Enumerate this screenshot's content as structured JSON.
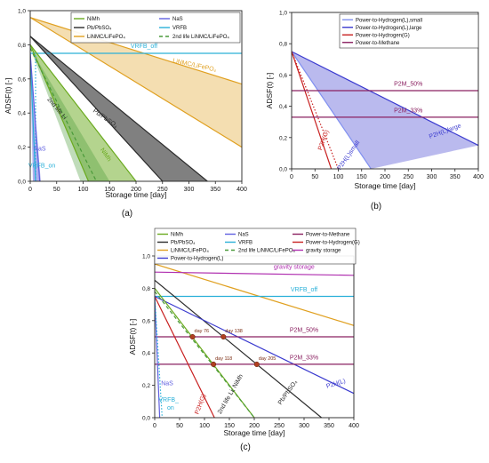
{
  "colors": {
    "nimh": "#6aaa1e",
    "pb": "#2b2b2b",
    "limn": "#e0a020",
    "nas": "#6060e0",
    "vrfb": "#2ab0d8",
    "second": "#4a9a3a",
    "p2h_small": "#8090f0",
    "p2h_large": "#3a3acf",
    "p2h_g": "#c82020",
    "p2m": "#8a2060",
    "gravity": "#b030b0",
    "events": "#b04020"
  },
  "chart_data": [
    {
      "id": "a",
      "type": "area",
      "panel_label": "(a)",
      "xlabel": "Storage time [day]",
      "ylabel": "ADSF(t) [-]",
      "xlim": [
        0,
        400
      ],
      "ylim": [
        0,
        1.0
      ],
      "xticks": [
        "0",
        "50",
        "100",
        "150",
        "200",
        "250",
        "300",
        "350",
        "400"
      ],
      "yticks": [
        "0,0",
        "0,2",
        "0,4",
        "0,6",
        "0,8",
        "1,0"
      ],
      "legend_position": "top",
      "legend": [
        {
          "key": "nimh",
          "label": "NiMh",
          "style": "solid"
        },
        {
          "key": "nas",
          "label": "NaS",
          "style": "solid"
        },
        {
          "key": "pb",
          "label": "Pb/PbSO₄",
          "style": "solid"
        },
        {
          "key": "vrfb",
          "label": "VRFB",
          "style": "solid"
        },
        {
          "key": "limn",
          "label": "LiNMC/LiFePO₄",
          "style": "solid"
        },
        {
          "key": "second",
          "label": "2nd life LiNMC/LiFePO₄",
          "style": "dashed"
        }
      ],
      "bands": [
        {
          "key": "limn",
          "upper": [
            [
              0,
              0.96
            ],
            [
              400,
              0.57
            ]
          ],
          "lower": [
            [
              0,
              0.96
            ],
            [
              400,
              0.2
            ]
          ],
          "opacity": 0.35
        },
        {
          "key": "pb",
          "upper": [
            [
              0,
              0.85
            ],
            [
              335,
              0
            ]
          ],
          "lower": [
            [
              0,
              0.85
            ],
            [
              250,
              0
            ]
          ],
          "opacity": 0.6
        },
        {
          "key": "nimh",
          "upper": [
            [
              0,
              0.8
            ],
            [
              200,
              0
            ]
          ],
          "lower": [
            [
              0,
              0.8
            ],
            [
              110,
              0
            ]
          ],
          "opacity": 0.5
        },
        {
          "key": "second",
          "upper": [
            [
              0,
              0.78
            ],
            [
              150,
              0
            ]
          ],
          "lower": [
            [
              0,
              0.78
            ],
            [
              95,
              0
            ]
          ],
          "opacity": 0.35
        },
        {
          "key": "nas",
          "upper": [
            [
              0,
              0.75
            ],
            [
              20,
              0
            ]
          ],
          "lower": [
            [
              0,
              0.75
            ],
            [
              5,
              0
            ]
          ],
          "opacity": 0.5
        }
      ],
      "lines": [
        {
          "key": "limn",
          "points": [
            [
              0,
              0.96
            ],
            [
              400,
              0.57
            ]
          ],
          "style": "solid"
        },
        {
          "key": "limn",
          "points": [
            [
              0,
              0.96
            ],
            [
              400,
              0.2
            ]
          ],
          "style": "solid"
        },
        {
          "key": "vrfb",
          "points": [
            [
              0,
              0.75
            ],
            [
              400,
              0.75
            ]
          ],
          "style": "solid"
        },
        {
          "key": "pb",
          "points": [
            [
              0,
              0.85
            ],
            [
              335,
              0
            ]
          ],
          "style": "solid"
        },
        {
          "key": "pb",
          "points": [
            [
              0,
              0.85
            ],
            [
              250,
              0
            ]
          ],
          "style": "solid"
        },
        {
          "key": "nimh",
          "points": [
            [
              0,
              0.8
            ],
            [
              200,
              0
            ]
          ],
          "style": "solid"
        },
        {
          "key": "nimh",
          "points": [
            [
              0,
              0.8
            ],
            [
              110,
              0
            ]
          ],
          "style": "solid"
        },
        {
          "key": "second",
          "points": [
            [
              0,
              0.78
            ],
            [
              125,
              0
            ]
          ],
          "style": "dashed"
        },
        {
          "key": "vrfb",
          "points": [
            [
              0,
              0.75
            ],
            [
              10,
              0
            ]
          ],
          "style": "solid"
        },
        {
          "key": "vrfb",
          "points": [
            [
              10,
              0
            ],
            [
              10,
              0.75
            ]
          ],
          "style": "dotted"
        },
        {
          "key": "nas",
          "points": [
            [
              0,
              0.75
            ],
            [
              18,
              0
            ]
          ],
          "style": "solid"
        }
      ],
      "annotations": [
        {
          "text": "VRFB_off",
          "key": "vrfb",
          "x": 215,
          "y": 0.78,
          "rotate": 0
        },
        {
          "text": "LiNMC/LiFePO₄",
          "key": "limn",
          "x": 310,
          "y": 0.67,
          "rotate": 12
        },
        {
          "text": "Pb/PbSO₄",
          "key": "pb",
          "x": 140,
          "y": 0.36,
          "rotate": 35
        },
        {
          "text": "2nd life Li",
          "key": "pb",
          "x": 48,
          "y": 0.42,
          "rotate": 50
        },
        {
          "text": "NiMh",
          "key": "nimh",
          "x": 140,
          "y": 0.15,
          "rotate": 55
        },
        {
          "text": "NaS",
          "key": "nas",
          "x": 18,
          "y": 0.18,
          "rotate": 0
        },
        {
          "text": "VRFB_on",
          "key": "vrfb",
          "x": 22,
          "y": 0.08,
          "rotate": 0
        }
      ]
    },
    {
      "id": "b",
      "type": "area",
      "panel_label": "(b)",
      "xlabel": "Storage time [day]",
      "ylabel": "ADSF(t) [-]",
      "xlim": [
        0,
        400
      ],
      "ylim": [
        0,
        1.0
      ],
      "xticks": [
        "0",
        "50",
        "100",
        "150",
        "200",
        "250",
        "300",
        "350",
        "400"
      ],
      "yticks": [
        "0,0",
        "0,2",
        "0,4",
        "0,6",
        "0,8",
        "1,0"
      ],
      "legend_position": "top-right",
      "legend": [
        {
          "key": "p2h_small",
          "label": "Power-to-Hydrogen(L),small",
          "style": "solid"
        },
        {
          "key": "p2h_large",
          "label": "Power-to-Hydrogen(L),large",
          "style": "solid"
        },
        {
          "key": "p2h_g",
          "label": "Power-to-Hydrogen(G)",
          "style": "solid"
        },
        {
          "key": "p2m",
          "label": "Power-to-Methane",
          "style": "solid"
        }
      ],
      "bands": [
        {
          "key": "p2h_large",
          "upper": [
            [
              0,
              0.75
            ],
            [
              400,
              0.15
            ]
          ],
          "lower": [
            [
              0,
              0.75
            ],
            [
              170,
              0
            ]
          ],
          "opacity": 0.35
        }
      ],
      "lines": [
        {
          "key": "p2h_large",
          "points": [
            [
              0,
              0.75
            ],
            [
              400,
              0.15
            ]
          ],
          "style": "solid"
        },
        {
          "key": "p2h_small",
          "points": [
            [
              0,
              0.75
            ],
            [
              170,
              0
            ]
          ],
          "style": "solid"
        },
        {
          "key": "p2h_g",
          "points": [
            [
              0,
              0.75
            ],
            [
              100,
              0
            ]
          ],
          "style": "dotted"
        },
        {
          "key": "p2h_g",
          "points": [
            [
              0,
              0.75
            ],
            [
              85,
              0
            ]
          ],
          "style": "solid"
        },
        {
          "key": "p2m",
          "points": [
            [
              0,
              0.5
            ],
            [
              400,
              0.5
            ]
          ],
          "style": "solid"
        },
        {
          "key": "p2m",
          "points": [
            [
              0,
              0.33
            ],
            [
              400,
              0.33
            ]
          ],
          "style": "solid"
        }
      ],
      "annotations": [
        {
          "text": "P2M_50%",
          "key": "p2m",
          "x": 250,
          "y": 0.53,
          "rotate": 0
        },
        {
          "text": "P2M_33%",
          "key": "p2m",
          "x": 250,
          "y": 0.36,
          "rotate": 0
        },
        {
          "text": "P2H(G)",
          "key": "p2h_g",
          "x": 72,
          "y": 0.18,
          "rotate": -70
        },
        {
          "text": "P2H(L)small",
          "key": "p2h_large",
          "x": 125,
          "y": 0.08,
          "rotate": -55
        },
        {
          "text": "P2H(L)large",
          "key": "p2h_large",
          "x": 330,
          "y": 0.23,
          "rotate": -20
        }
      ]
    },
    {
      "id": "c",
      "type": "line",
      "panel_label": "(c)",
      "xlabel": "Storage time [day]",
      "ylabel": "ADSF(t) [-]",
      "xlim": [
        0,
        400
      ],
      "ylim": [
        0,
        1.0
      ],
      "xticks": [
        "0",
        "50",
        "100",
        "150",
        "200",
        "250",
        "300",
        "350",
        "400"
      ],
      "yticks": [
        "0,0",
        "0,2",
        "0,4",
        "0,6",
        "0,8",
        "1,0"
      ],
      "legend_position": "top",
      "legend": [
        {
          "key": "nimh",
          "label": "NiMh",
          "style": "solid"
        },
        {
          "key": "nas",
          "label": "NaS",
          "style": "solid"
        },
        {
          "key": "p2m",
          "label": "Power-to-Methane",
          "style": "solid"
        },
        {
          "key": "pb",
          "label": "Pb/PbSO₄",
          "style": "solid"
        },
        {
          "key": "vrfb",
          "label": "VRFB",
          "style": "solid"
        },
        {
          "key": "p2h_g",
          "label": "Power-to-Hydrogen(G)",
          "style": "solid"
        },
        {
          "key": "limn",
          "label": "LiNMC/LiFePO₄",
          "style": "solid"
        },
        {
          "key": "second",
          "label": "2nd life LiNMC/LiFePO₄",
          "style": "dashed"
        },
        {
          "key": "gravity",
          "label": "gravity storage",
          "style": "solid"
        },
        {
          "key": "p2h_large",
          "label": "Power-to-Hydrogen(L)",
          "style": "solid"
        }
      ],
      "bands": [],
      "lines": [
        {
          "key": "limn",
          "points": [
            [
              0,
              0.95
            ],
            [
              400,
              0.57
            ]
          ],
          "style": "solid"
        },
        {
          "key": "gravity",
          "points": [
            [
              0,
              0.9
            ],
            [
              400,
              0.88
            ]
          ],
          "style": "solid"
        },
        {
          "key": "vrfb",
          "points": [
            [
              0,
              0.75
            ],
            [
              400,
              0.75
            ]
          ],
          "style": "solid"
        },
        {
          "key": "pb",
          "points": [
            [
              0,
              0.85
            ],
            [
              335,
              0
            ]
          ],
          "style": "solid"
        },
        {
          "key": "p2h_large",
          "points": [
            [
              0,
              0.75
            ],
            [
              400,
              0.15
            ]
          ],
          "style": "solid"
        },
        {
          "key": "p2m",
          "points": [
            [
              0,
              0.5
            ],
            [
              400,
              0.5
            ]
          ],
          "style": "solid"
        },
        {
          "key": "p2m",
          "points": [
            [
              0,
              0.33
            ],
            [
              400,
              0.33
            ]
          ],
          "style": "solid"
        },
        {
          "key": "nimh",
          "points": [
            [
              0,
              0.8
            ],
            [
              200,
              0
            ]
          ],
          "style": "solid"
        },
        {
          "key": "second",
          "points": [
            [
              0,
              0.78
            ],
            [
              200,
              0
            ]
          ],
          "style": "dashed"
        },
        {
          "key": "p2h_g",
          "points": [
            [
              0,
              0.75
            ],
            [
              120,
              0
            ]
          ],
          "style": "solid"
        },
        {
          "key": "nas",
          "points": [
            [
              0,
              0.75
            ],
            [
              10,
              0
            ]
          ],
          "style": "solid"
        },
        {
          "key": "vrfb",
          "points": [
            [
              0,
              0.75
            ],
            [
              15,
              0
            ]
          ],
          "style": "dotted"
        }
      ],
      "points": [
        {
          "x": 76,
          "y": 0.5,
          "label": "day 76"
        },
        {
          "x": 138,
          "y": 0.5,
          "label": "day 138"
        },
        {
          "x": 118,
          "y": 0.33,
          "label": "day 118"
        },
        {
          "x": 205,
          "y": 0.33,
          "label": "day 205"
        }
      ],
      "annotations": [
        {
          "text": "gravity storage",
          "key": "gravity",
          "x": 280,
          "y": 0.92,
          "rotate": 0
        },
        {
          "text": "VRFB_off",
          "key": "vrfb",
          "x": 300,
          "y": 0.78,
          "rotate": 0
        },
        {
          "text": "P2M_50%",
          "key": "p2m",
          "x": 300,
          "y": 0.53,
          "rotate": 0
        },
        {
          "text": "P2M_33%",
          "key": "p2m",
          "x": 300,
          "y": 0.36,
          "rotate": 0
        },
        {
          "text": "P2H(L)",
          "key": "p2h_large",
          "x": 365,
          "y": 0.2,
          "rotate": -17
        },
        {
          "text": "Pb/PbSO₄",
          "key": "pb",
          "x": 270,
          "y": 0.15,
          "rotate": -55
        },
        {
          "text": "2nd life Li; NiMh",
          "key": "pb",
          "x": 155,
          "y": 0.14,
          "rotate": -60
        },
        {
          "text": "P2H(G)",
          "key": "p2h_g",
          "x": 95,
          "y": 0.08,
          "rotate": -70
        },
        {
          "text": "NaS",
          "key": "nas",
          "x": 25,
          "y": 0.2,
          "rotate": 0
        },
        {
          "text": "VRFB_",
          "key": "vrfb",
          "x": 28,
          "y": 0.1,
          "rotate": 0
        },
        {
          "text": "on",
          "key": "vrfb",
          "x": 32,
          "y": 0.05,
          "rotate": 0
        }
      ]
    }
  ]
}
